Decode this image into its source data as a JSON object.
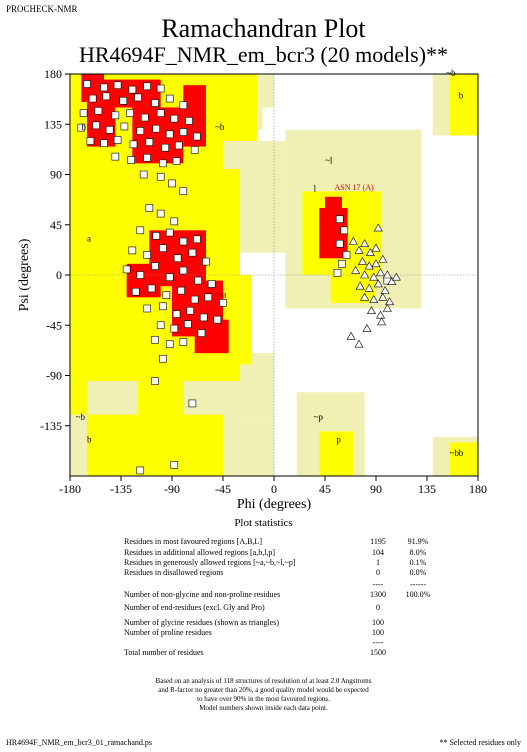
{
  "header": {
    "program": "PROCHECK-NMR",
    "title": "Ramachandran Plot",
    "subtitle": "HR4694F_NMR_em_bcr3 (20 models)**"
  },
  "chart_data": {
    "type": "scatter",
    "xlabel": "Phi (degrees)",
    "ylabel": "Psi (degrees)",
    "xlim": [
      -180,
      180
    ],
    "ylim": [
      -180,
      180
    ],
    "xticks": [
      "-180",
      "-135",
      "-90",
      "-45",
      "0",
      "45",
      "90",
      "135",
      "180"
    ],
    "yticks": [
      "180",
      "135",
      "90",
      "45",
      "0",
      "-45",
      "-90",
      "-135"
    ],
    "region_labels": [
      "b",
      "a",
      "~b",
      "~a",
      "~l",
      "l",
      "~b",
      "b",
      "~p",
      "p",
      "~b",
      "~b",
      "b",
      "b"
    ],
    "highlight_label": "ASN 17 (A)",
    "highlight_point": [
      64,
      76
    ],
    "colors": {
      "core": "#ff0000",
      "allowed": "#ffff00",
      "generous": "#f0f0b4",
      "disallowed": "#ffffff",
      "outline": "#000000"
    },
    "series": [
      {
        "name": "non-glycine residues (squares)",
        "marker": "square",
        "points": [
          [
            -165,
            171
          ],
          [
            -150,
            168
          ],
          [
            -138,
            170
          ],
          [
            -125,
            166
          ],
          [
            -112,
            169
          ],
          [
            -100,
            167
          ],
          [
            -160,
            158
          ],
          [
            -148,
            160
          ],
          [
            -133,
            156
          ],
          [
            -120,
            159
          ],
          [
            -105,
            154
          ],
          [
            -92,
            158
          ],
          [
            -80,
            152
          ],
          [
            -168,
            145
          ],
          [
            -155,
            147
          ],
          [
            -140,
            143
          ],
          [
            -127,
            145
          ],
          [
            -114,
            141
          ],
          [
            -100,
            145
          ],
          [
            -88,
            140
          ],
          [
            -75,
            138
          ],
          [
            -170,
            132
          ],
          [
            -157,
            134
          ],
          [
            -145,
            130
          ],
          [
            -132,
            133
          ],
          [
            -118,
            129
          ],
          [
            -104,
            131
          ],
          [
            -92,
            126
          ],
          [
            -80,
            128
          ],
          [
            -68,
            124
          ],
          [
            -162,
            120
          ],
          [
            -150,
            118
          ],
          [
            -138,
            121
          ],
          [
            -124,
            117
          ],
          [
            -110,
            119
          ],
          [
            -96,
            114
          ],
          [
            -84,
            116
          ],
          [
            -70,
            112
          ],
          [
            -140,
            106
          ],
          [
            -126,
            103
          ],
          [
            -112,
            105
          ],
          [
            -98,
            100
          ],
          [
            -86,
            102
          ],
          [
            -115,
            90
          ],
          [
            -100,
            88
          ],
          [
            -90,
            82
          ],
          [
            -80,
            75
          ],
          [
            -110,
            60
          ],
          [
            -100,
            55
          ],
          [
            -88,
            48
          ],
          [
            -118,
            40
          ],
          [
            -104,
            35
          ],
          [
            -92,
            38
          ],
          [
            -80,
            30
          ],
          [
            -68,
            32
          ],
          [
            -125,
            22
          ],
          [
            -112,
            18
          ],
          [
            -98,
            24
          ],
          [
            -85,
            15
          ],
          [
            -72,
            20
          ],
          [
            -60,
            12
          ],
          [
            -130,
            5
          ],
          [
            -118,
            0
          ],
          [
            -105,
            8
          ],
          [
            -92,
            -2
          ],
          [
            -80,
            4
          ],
          [
            -67,
            -5
          ],
          [
            -55,
            -8
          ],
          [
            -122,
            -15
          ],
          [
            -108,
            -12
          ],
          [
            -95,
            -18
          ],
          [
            -82,
            -14
          ],
          [
            -70,
            -22
          ],
          [
            -58,
            -20
          ],
          [
            -45,
            -25
          ],
          [
            -112,
            -30
          ],
          [
            -98,
            -28
          ],
          [
            -86,
            -35
          ],
          [
            -74,
            -32
          ],
          [
            -62,
            -38
          ],
          [
            -50,
            -40
          ],
          [
            -100,
            -45
          ],
          [
            -88,
            -48
          ],
          [
            -76,
            -44
          ],
          [
            -64,
            -52
          ],
          [
            -105,
            -58
          ],
          [
            -92,
            -62
          ],
          [
            -80,
            -60
          ],
          [
            -98,
            -75
          ],
          [
            -105,
            -95
          ],
          [
            -72,
            -115
          ],
          [
            -118,
            -175
          ],
          [
            -88,
            -170
          ],
          [
            100,
            -5
          ],
          [
            62,
            40
          ],
          [
            58,
            28
          ],
          [
            64,
            18
          ],
          [
            60,
            10
          ],
          [
            56,
            2
          ],
          [
            58,
            50
          ]
        ]
      },
      {
        "name": "glycine residues (triangles)",
        "marker": "triangle",
        "points": [
          [
            70,
            30
          ],
          [
            75,
            22
          ],
          [
            80,
            28
          ],
          [
            85,
            20
          ],
          [
            90,
            24
          ],
          [
            78,
            12
          ],
          [
            84,
            8
          ],
          [
            90,
            10
          ],
          [
            96,
            14
          ],
          [
            72,
            4
          ],
          [
            80,
            0
          ],
          [
            88,
            -2
          ],
          [
            94,
            2
          ],
          [
            100,
            0
          ],
          [
            76,
            -10
          ],
          [
            84,
            -12
          ],
          [
            92,
            -8
          ],
          [
            98,
            -14
          ],
          [
            104,
            -6
          ],
          [
            80,
            -20
          ],
          [
            88,
            -22
          ],
          [
            96,
            -20
          ],
          [
            102,
            -24
          ],
          [
            86,
            -32
          ],
          [
            94,
            -36
          ],
          [
            100,
            -30
          ],
          [
            68,
            -55
          ],
          [
            75,
            -62
          ],
          [
            82,
            -48
          ],
          [
            92,
            42
          ],
          [
            108,
            -2
          ],
          [
            95,
            -42
          ]
        ]
      }
    ]
  },
  "stats": {
    "title": "Plot statistics",
    "rows": [
      {
        "label": "Residues in most favoured regions  [A,B,L]",
        "count": "1195",
        "pct": "91.9%"
      },
      {
        "label": "Residues in additional allowed regions  [a,b,l,p]",
        "count": "104",
        "pct": "8.0%"
      },
      {
        "label": "Residues in generously allowed regions  [~a,~b,~l,~p]",
        "count": "1",
        "pct": "0.1%"
      },
      {
        "label": "Residues in disallowed regions",
        "count": "0",
        "pct": "0.0%"
      },
      {
        "label": "",
        "count": "----",
        "pct": "------"
      },
      {
        "label": "Number of non-glycine and non-proline residues",
        "count": "1300",
        "pct": "100.0%"
      },
      {
        "label": "Number of end-residues (excl. Gly and Pro)",
        "count": "0",
        "pct": ""
      },
      {
        "label": "Number of glycine residues (shown as triangles)",
        "count": "100",
        "pct": ""
      },
      {
        "label": "Number of proline residues",
        "count": "100",
        "pct": ""
      },
      {
        "label": "",
        "count": "----",
        "pct": ""
      },
      {
        "label": "Total number of residues",
        "count": "1500",
        "pct": ""
      }
    ]
  },
  "footnote": [
    "Based on an analysis of 118 structures of resolution of at least 2.0 Angstroms",
    "and R-factor no greater than 20%, a good quality model would be expected",
    "to have over 90% in the most favoured regions.",
    "Model numbers shown inside each data point."
  ],
  "footer": {
    "filename": "HR4694F_NMR_em_bcr3_01_ramachand.ps",
    "note": "** Selected residues only"
  }
}
